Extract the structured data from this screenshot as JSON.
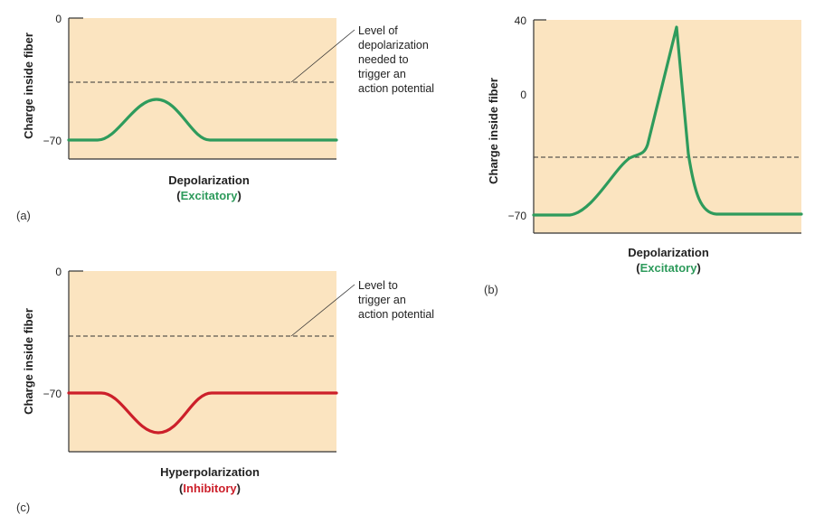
{
  "colors": {
    "plot_bg": "#fbe4c0",
    "excitatory": "#2e9b5c",
    "inhibitory": "#cc1f2a",
    "axis": "#333333"
  },
  "panel_a": {
    "label": "(a)",
    "ylabel": "Charge inside fiber",
    "tick_top": "0",
    "tick_bottom": "−70",
    "note_lines": [
      "Level of",
      "depolarization",
      "needed to",
      "trigger an",
      "action potential"
    ],
    "caption_line1": "Depolarization",
    "caption_open": "(",
    "caption_word": "Excitatory",
    "caption_close": ")"
  },
  "panel_b": {
    "label": "(b)",
    "ylabel": "Charge inside fiber",
    "tick_top": "40",
    "tick_mid": "0",
    "tick_bottom": "−70",
    "caption_line1": "Depolarization",
    "caption_open": "(",
    "caption_word": "Excitatory",
    "caption_close": ")"
  },
  "panel_c": {
    "label": "(c)",
    "ylabel": "Charge inside fiber",
    "tick_top": "0",
    "tick_bottom": "−70",
    "note_lines": [
      "Level to",
      "trigger an",
      "action potential"
    ],
    "caption_line1": "Hyperpolarization",
    "caption_open": "(",
    "caption_word": "Inhibitory",
    "caption_close": ")"
  }
}
